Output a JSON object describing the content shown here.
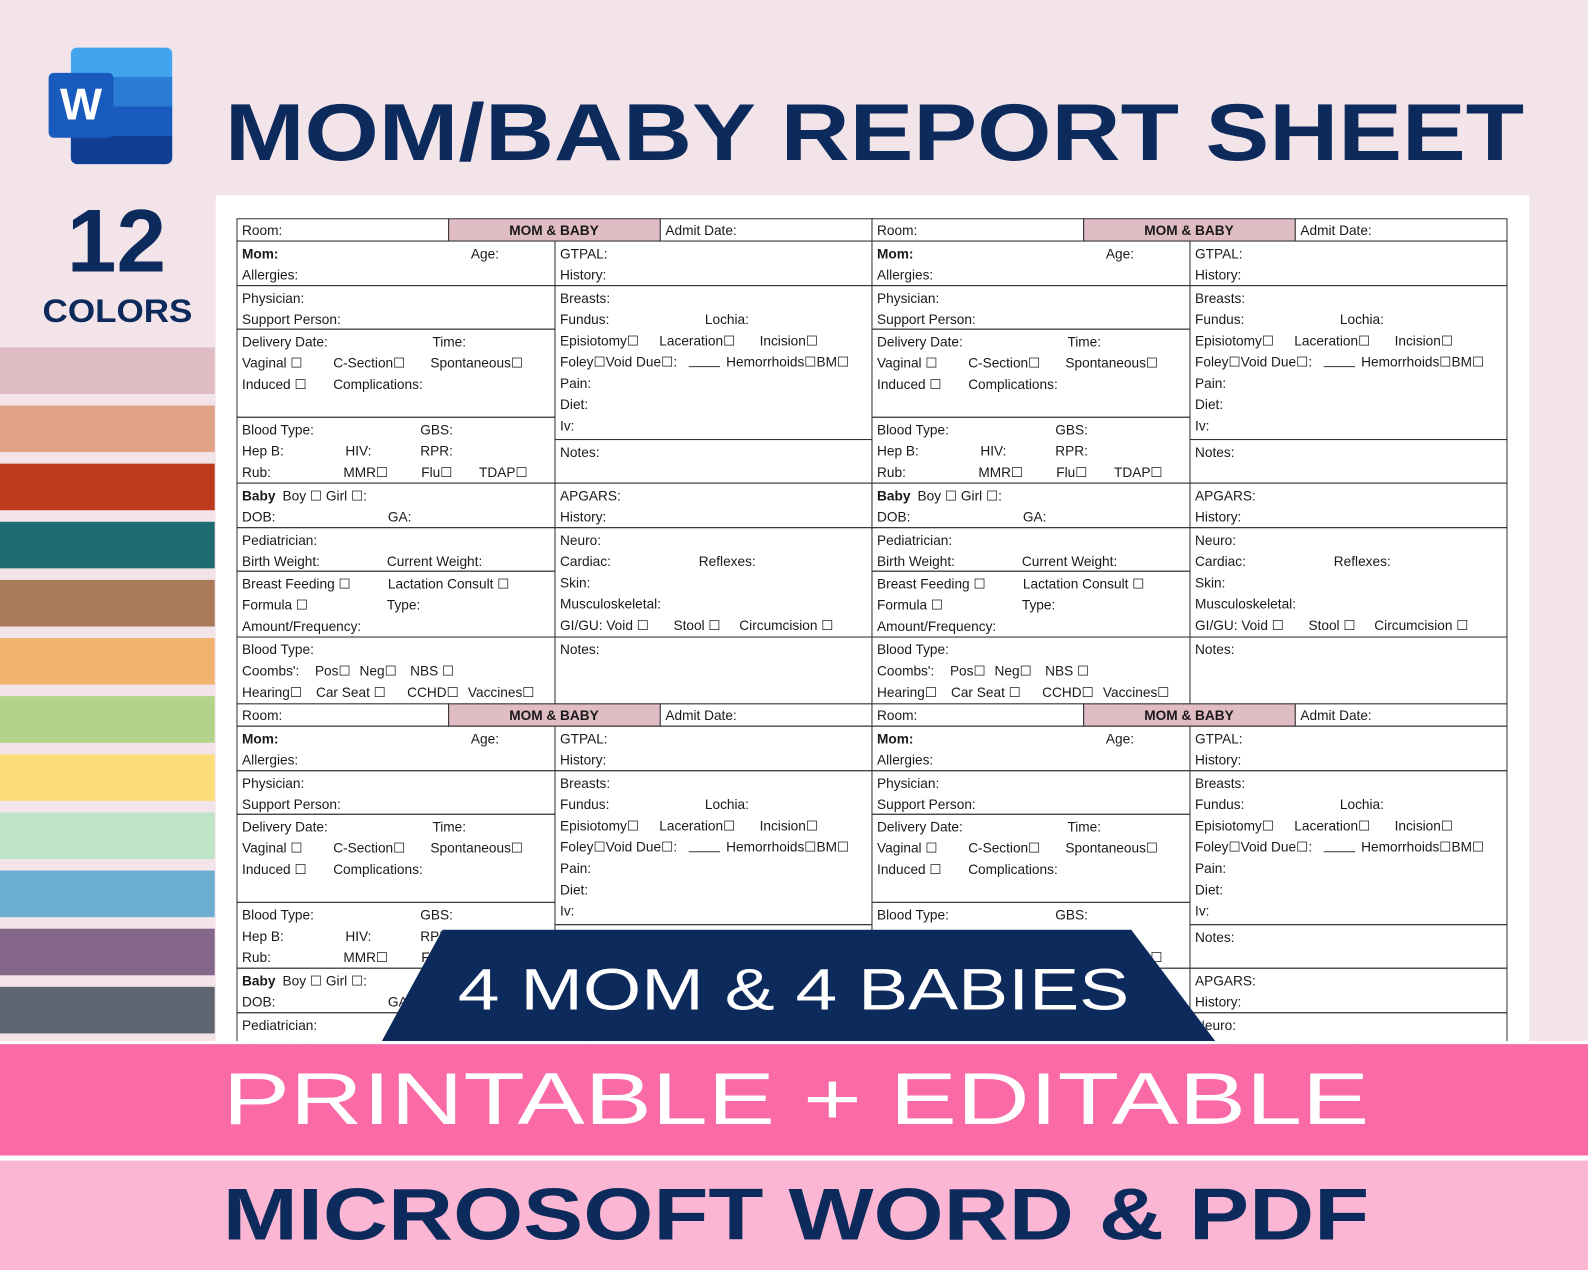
{
  "header": {
    "title": "MOM/BABY REPORT SHEET",
    "count": "12",
    "count_label": "COLORS",
    "app_icon": "W"
  },
  "swatch_colors": [
    "#dfbcc4",
    "#e0a286",
    "#bd3a1c",
    "#1e6b73",
    "#a87a5a",
    "#efb36d",
    "#b1d38a",
    "#fddc7a",
    "#bfe3c7",
    "#6aaed1",
    "#846689",
    "#5e6470"
  ],
  "report_block": {
    "header": [
      "Room:",
      "MOM & BABY",
      "Admit Date:"
    ],
    "left": [
      [
        [
          "Mom:",
          "Age:"
        ],
        [
          "Allergies:"
        ]
      ],
      [
        [
          "Physician:"
        ],
        [
          "Support Person:"
        ]
      ],
      [
        [
          "Delivery Date:",
          "Time:"
        ],
        [
          "Vaginal ☐",
          "C-Section☐",
          "Spontaneous☐"
        ],
        [
          "Induced ☐",
          "Complications:"
        ]
      ],
      [
        [
          "Blood Type:",
          "GBS:"
        ],
        [
          "Hep B:",
          "HIV:",
          "RPR:"
        ],
        [
          "Rub:",
          "MMR☐",
          "Flu☐",
          "TDAP☐"
        ]
      ],
      [
        [
          "Baby",
          "Boy ☐ Girl ☐:"
        ],
        [
          "DOB:",
          "GA:"
        ]
      ],
      [
        [
          "Pediatrician:"
        ],
        [
          "Birth Weight:",
          "Current Weight:"
        ]
      ],
      [
        [
          "Breast Feeding ☐",
          "Lactation Consult ☐"
        ],
        [
          "Formula ☐",
          "Type:"
        ],
        [
          "Amount/Frequency:"
        ]
      ],
      [
        [
          "Blood Type:"
        ],
        [
          "Coombs':",
          "Pos☐",
          "Neg☐",
          "NBS ☐"
        ],
        [
          "Hearing☐",
          "Car Seat ☐",
          "CCHD☐",
          "Vaccines☐"
        ]
      ]
    ],
    "right": [
      [
        [
          "GTPAL:"
        ],
        [
          "History:"
        ]
      ],
      [
        [
          "Breasts:"
        ],
        [
          "Fundus:",
          "Lochia:"
        ],
        [
          "Episiotomy☐",
          "Laceration☐",
          "Incision☐"
        ],
        [
          "Foley☐Void Due☐:",
          "Hemorrhoids☐BM☐"
        ],
        [
          "Pain:"
        ],
        [
          "Diet:"
        ],
        [
          "Iv:"
        ]
      ],
      [
        [
          "Notes:"
        ]
      ],
      [
        [
          "APGARS:"
        ],
        [
          "History:"
        ]
      ],
      [
        [
          "Neuro:"
        ],
        [
          "Cardiac:",
          "Reflexes:"
        ],
        [
          "Skin:"
        ],
        [
          "Musculoskeletal:"
        ],
        [
          "GI/GU: Void ☐",
          "Stool ☐",
          "Circumcision ☐"
        ]
      ],
      [
        [
          "Notes:"
        ]
      ]
    ]
  },
  "banner": "4 MOM & 4 BABIES",
  "footer": {
    "line1": "PRINTABLE + EDITABLE",
    "line2": "MICROSOFT WORD & PDF"
  }
}
